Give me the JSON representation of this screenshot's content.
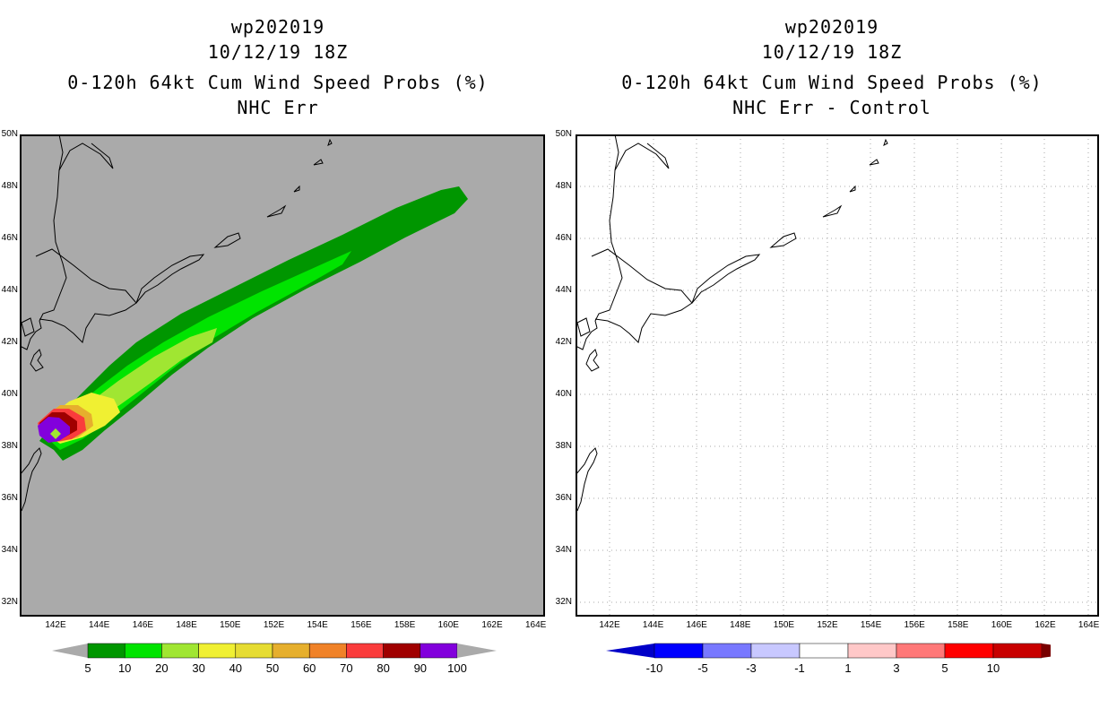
{
  "left_panel": {
    "storm_id": "wp202019",
    "datetime": "10/12/19 18Z",
    "product": "0-120h 64kt Cum Wind Speed Probs (%)",
    "subtitle": "NHC Err",
    "background_color": "#aaaaaa"
  },
  "right_panel": {
    "storm_id": "wp202019",
    "datetime": "10/12/19 18Z",
    "product": "0-120h 64kt Cum Wind Speed Probs (%)",
    "subtitle": "NHC Err - Control",
    "background_color": "#ffffff"
  },
  "axes": {
    "lat_labels": [
      "50N",
      "48N",
      "46N",
      "44N",
      "42N",
      "40N",
      "38N",
      "36N",
      "34N",
      "32N"
    ],
    "lon_labels_left": [
      "142E",
      "144E",
      "146E",
      "148E",
      "150E",
      "152E",
      "154E",
      "156E",
      "158E",
      "160E",
      "162E",
      "164E"
    ],
    "lon_labels_right": [
      "142E",
      "144E",
      "146E",
      "148E",
      "150E",
      "152E",
      "154E",
      "156E",
      "158E",
      "160E",
      "162E",
      "164E"
    ]
  },
  "left_colorbar": {
    "labels": [
      "5",
      "10",
      "20",
      "30",
      "40",
      "50",
      "60",
      "70",
      "80",
      "90",
      "100"
    ],
    "colors": [
      "#009600",
      "#00e400",
      "#a0e632",
      "#f0f032",
      "#e6dc32",
      "#e6af2d",
      "#f08228",
      "#fa3c3c",
      "#a00000",
      "#8200dc"
    ]
  },
  "right_colorbar": {
    "labels": [
      "-10",
      "-5",
      "-3",
      "-1",
      "1",
      "3",
      "5",
      "10"
    ],
    "colors": [
      "#0000c8",
      "#0000ff",
      "#7878ff",
      "#c8c8ff",
      "#ffffff",
      "#ffc8c8",
      "#ff7878",
      "#ff0000",
      "#c80000",
      "#780000"
    ]
  }
}
